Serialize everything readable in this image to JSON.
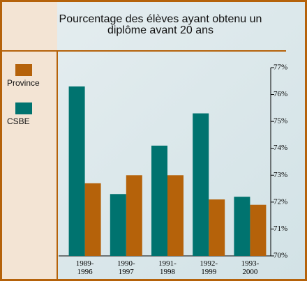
{
  "chart_data": {
    "type": "bar",
    "title": "Pourcentage des élèves ayant obtenu un\ndiplôme avant 20 ans",
    "categories": [
      "1989-\n1996",
      "1990-\n1997",
      "1991-\n1998",
      "1992-\n1999",
      "1993-\n2000"
    ],
    "series": [
      {
        "name": "Province",
        "color": "#b5620a",
        "values": [
          72.7,
          73.0,
          73.0,
          72.1,
          71.9
        ]
      },
      {
        "name": "CSBE",
        "color": "#00736f",
        "values": [
          76.3,
          72.3,
          74.1,
          75.3,
          72.2
        ]
      }
    ],
    "ylim": [
      70,
      77
    ],
    "yticks": [
      {
        "value": 70,
        "label": "70%"
      },
      {
        "value": 71,
        "label": "71%"
      },
      {
        "value": 72,
        "label": "72%"
      },
      {
        "value": 73,
        "label": "73%"
      },
      {
        "value": 74,
        "label": "74%"
      },
      {
        "value": 75,
        "label": "75%"
      },
      {
        "value": 76,
        "label": "76%"
      },
      {
        "value": 77,
        "label": "77%"
      }
    ],
    "legend": "left"
  }
}
